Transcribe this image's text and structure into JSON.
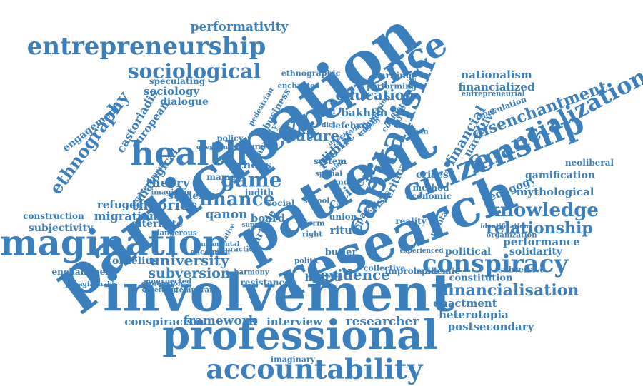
{
  "color": "#3b7fbd",
  "words": [
    "participation",
    "patient",
    "research",
    "involvement",
    "professional",
    "accountability",
    "imagination",
    "experience",
    "health",
    "capitalism",
    "citizenship",
    "conspiracy",
    "entrepreneurship",
    "financialization",
    "sociological",
    "financialisation",
    "knowledge",
    "ethnography",
    "game",
    "finance",
    "citizen",
    "public",
    "crisis",
    "critical",
    "education",
    "relationship",
    "disenchantment",
    "future",
    "theories",
    "theory",
    "university",
    "evidence",
    "performativity",
    "nationalism",
    "financialized",
    "financial",
    "narrative",
    "gamification",
    "mythological",
    "performance",
    "solidarity",
    "political",
    "enactment",
    "heterotopia",
    "postsecondary",
    "neoliberal",
    "pedagogy",
    "framework",
    "interview",
    "researcher",
    "conspiracism",
    "subversion",
    "migration",
    "refugee",
    "cornelius",
    "enchantment",
    "subjectivity",
    "construction",
    "alternate",
    "dialogical",
    "sociology",
    "dialogue",
    "european",
    "castoriadis",
    "engagement",
    "speculating",
    "ethnographic",
    "learning",
    "bakhtin",
    "lefebvre",
    "governance",
    "athens",
    "digital",
    "policy",
    "student",
    "mames",
    "qanon",
    "board",
    "article",
    "ritual",
    "collective",
    "hybrid",
    "improbable",
    "epidemic",
    "constitution",
    "resistance",
    "contemporary",
    "dimension",
    "harmony",
    "papagiannakis",
    "unexpected",
    "governing",
    "practice",
    "encounter",
    "imaginary",
    "judith",
    "social",
    "butler",
    "union",
    "space",
    "reality",
    "mental",
    "economic",
    "method",
    "crises",
    "speculation",
    "entrepreneurial",
    "subversive",
    "organization",
    "identification",
    "experienced",
    "politic",
    "dangerous",
    "imagining",
    "government",
    "question",
    "cultural",
    "system",
    "anxiety",
    "pedestrian",
    "business",
    "capital",
    "uncertainty",
    "enchanted",
    "performing",
    "tragedy",
    "fundamental",
    "derivative",
    "support",
    "form",
    "right",
    "spatial",
    "counter",
    "theorising",
    "conflict",
    "urban",
    "more",
    "school",
    "mine",
    "digi"
  ]
}
